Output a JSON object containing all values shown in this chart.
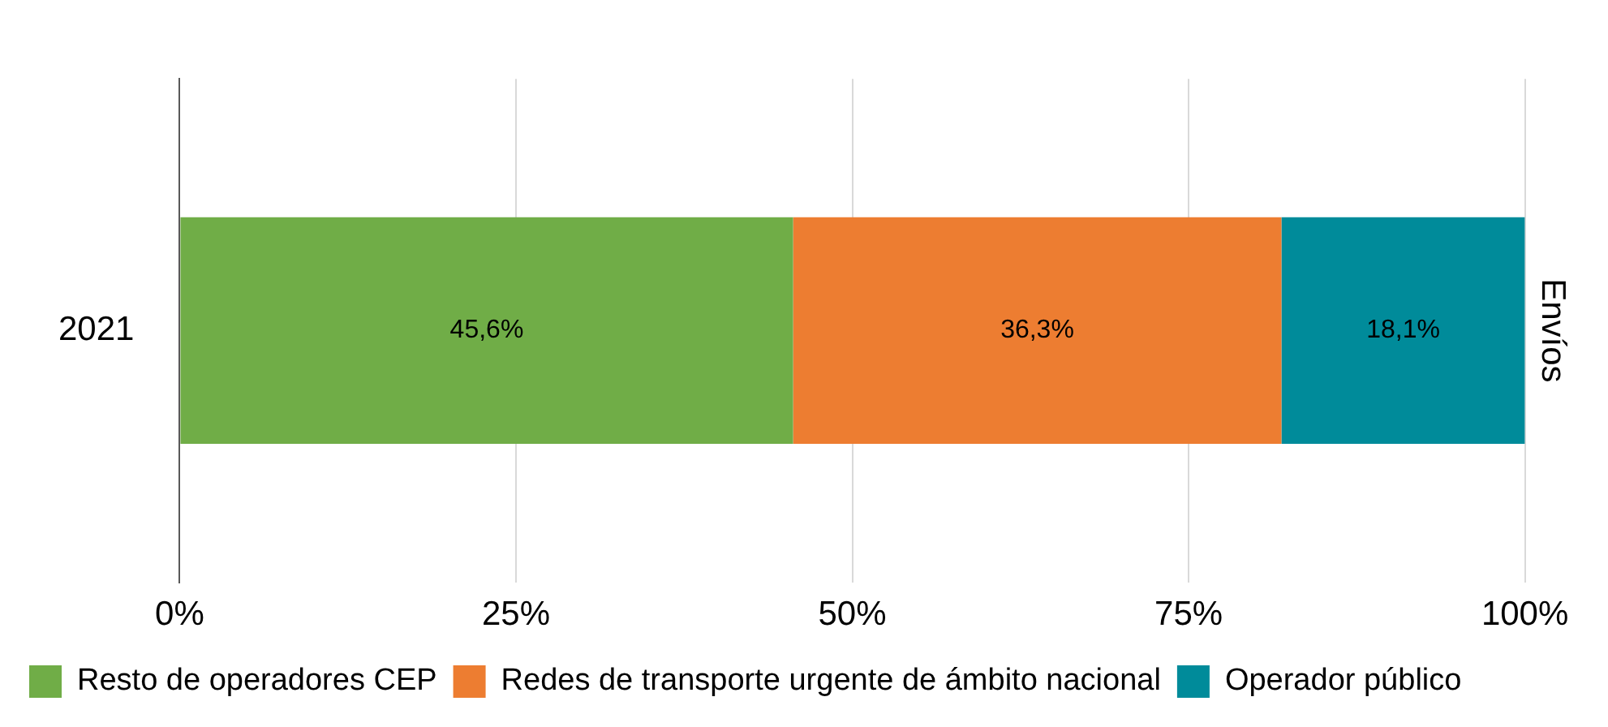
{
  "chart_data": {
    "type": "bar",
    "orientation": "horizontal",
    "stacked": true,
    "categories": [
      "2021"
    ],
    "y2label": "Envíos",
    "series": [
      {
        "name": "Resto de operadores CEP",
        "color": "#70ad47",
        "values": [
          45.6
        ],
        "value_labels": [
          "45,6%"
        ]
      },
      {
        "name": "Redes de transporte urgente de ámbito nacional",
        "color": "#ed7d31",
        "values": [
          36.3
        ],
        "value_labels": [
          "36,3%"
        ]
      },
      {
        "name": "Operador público",
        "color": "#008b9a",
        "values": [
          18.1
        ],
        "value_labels": [
          "18,1%"
        ]
      }
    ],
    "xlim": [
      0,
      100
    ],
    "xticks": [
      {
        "value": 0,
        "label": "0%"
      },
      {
        "value": 25,
        "label": "25%"
      },
      {
        "value": 50,
        "label": "50%"
      },
      {
        "value": 75,
        "label": "75%"
      },
      {
        "value": 100,
        "label": "100%"
      }
    ],
    "grid": "x",
    "legend": "bottom"
  }
}
